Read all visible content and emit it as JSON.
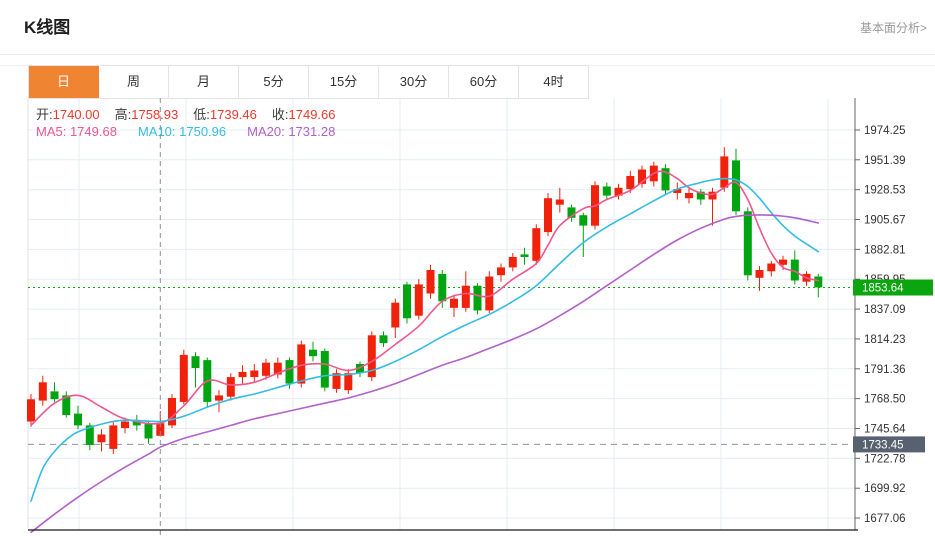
{
  "header": {
    "title": "K线图",
    "link": "基本面分析>"
  },
  "tabs": {
    "active_index": 0,
    "active_bg": "#ef8432",
    "items": [
      {
        "id": "tab-day",
        "label": "日"
      },
      {
        "id": "tab-week",
        "label": "周"
      },
      {
        "id": "tab-month",
        "label": "月"
      },
      {
        "id": "tab-5min",
        "label": "5分"
      },
      {
        "id": "tab-15min",
        "label": "15分"
      },
      {
        "id": "tab-30min",
        "label": "30分"
      },
      {
        "id": "tab-60min",
        "label": "60分"
      },
      {
        "id": "tab-4hour",
        "label": "4时"
      }
    ]
  },
  "readout": {
    "value_color": "#f0382c",
    "ohlc": [
      {
        "id": "open",
        "label": "开:",
        "value": "1740.00"
      },
      {
        "id": "high",
        "label": "高:",
        "value": "1758.93"
      },
      {
        "id": "low",
        "label": "低:",
        "value": "1739.46"
      },
      {
        "id": "close",
        "label": "收:",
        "value": "1749.66"
      }
    ],
    "ma": [
      {
        "id": "ma5",
        "label": "MA5:",
        "value": "1749.68",
        "color": "#ee578c"
      },
      {
        "id": "ma10",
        "label": "MA10:",
        "value": "1750.96",
        "color": "#35bce2"
      },
      {
        "id": "ma20",
        "label": "MA20:",
        "value": "1731.28",
        "color": "#b161c9"
      }
    ]
  },
  "chart_data": {
    "type": "candlestick",
    "title": "K线图 (日线)",
    "grid": true,
    "y_axis_side": "right",
    "ylim": [
      1665,
      1987
    ],
    "y_tick_labels": [
      "1974.25",
      "1951.39",
      "1928.53",
      "1905.67",
      "1882.81",
      "1859.95",
      "1837.09",
      "1814.23",
      "1791.36",
      "1768.50",
      "1745.64",
      "1722.78",
      "1699.92",
      "1677.06"
    ],
    "colors": {
      "up": "#f0220c",
      "down": "#00a411",
      "ma5": "#ee578c",
      "ma10": "#35bce2",
      "ma20": "#b161c9",
      "grid": "#e4edf3"
    },
    "current_price": {
      "value": "1853.64",
      "line_color": "#18a418",
      "box_color": "#0ba50f",
      "text_color": "#ffffff"
    },
    "crosshair": {
      "candle_index": 11,
      "h_line_price": "1733.45",
      "h_box_color": "#576170",
      "h_text_color": "#ffffff",
      "line_color": "#8a93a0"
    },
    "candle_format": "[open, close, high, low]",
    "candles": [
      [
        1751,
        1768,
        1772,
        1747
      ],
      [
        1767,
        1781,
        1786,
        1763
      ],
      [
        1774,
        1768,
        1781,
        1766
      ],
      [
        1771,
        1756,
        1774,
        1754
      ],
      [
        1757,
        1748,
        1763,
        1745
      ],
      [
        1748,
        1733,
        1750,
        1729
      ],
      [
        1735,
        1741,
        1745,
        1728
      ],
      [
        1730,
        1748,
        1751,
        1726
      ],
      [
        1746,
        1751,
        1754,
        1742
      ],
      [
        1752,
        1748,
        1756,
        1744
      ],
      [
        1749,
        1738,
        1752,
        1734
      ],
      [
        1740.0,
        1749.66,
        1758.93,
        1739.46
      ],
      [
        1748,
        1769,
        1772,
        1746
      ],
      [
        1766,
        1802,
        1806,
        1764
      ],
      [
        1801,
        1792,
        1804,
        1777
      ],
      [
        1798,
        1766,
        1800,
        1762
      ],
      [
        1767,
        1771,
        1775,
        1758
      ],
      [
        1770,
        1785,
        1788,
        1767
      ],
      [
        1785,
        1789,
        1794,
        1780
      ],
      [
        1785,
        1790,
        1795,
        1781
      ],
      [
        1786,
        1796,
        1799,
        1783
      ],
      [
        1787,
        1796,
        1800,
        1784
      ],
      [
        1798,
        1780,
        1800,
        1776
      ],
      [
        1780,
        1810,
        1813,
        1777
      ],
      [
        1806,
        1801,
        1812,
        1797
      ],
      [
        1805,
        1777,
        1807,
        1774
      ],
      [
        1776,
        1788,
        1791,
        1773
      ],
      [
        1775,
        1788,
        1791,
        1772
      ],
      [
        1795,
        1788,
        1797,
        1785
      ],
      [
        1785,
        1817,
        1820,
        1782
      ],
      [
        1817,
        1811,
        1820,
        1808
      ],
      [
        1823,
        1842,
        1845,
        1815
      ],
      [
        1856,
        1830,
        1858,
        1826
      ],
      [
        1832,
        1856,
        1860,
        1829
      ],
      [
        1849,
        1867,
        1871,
        1845
      ],
      [
        1864,
        1843,
        1867,
        1838
      ],
      [
        1838,
        1845,
        1848,
        1831
      ],
      [
        1838,
        1855,
        1866,
        1835
      ],
      [
        1855,
        1836,
        1857,
        1833
      ],
      [
        1836,
        1862,
        1866,
        1834
      ],
      [
        1863,
        1869,
        1872,
        1858
      ],
      [
        1869,
        1877,
        1880,
        1866
      ],
      [
        1879,
        1877,
        1884,
        1871
      ],
      [
        1874,
        1899,
        1902,
        1871
      ],
      [
        1896,
        1922,
        1926,
        1893
      ],
      [
        1917,
        1921,
        1930,
        1911
      ],
      [
        1915,
        1907,
        1917,
        1904
      ],
      [
        1909,
        1901,
        1911,
        1877
      ],
      [
        1901,
        1932,
        1935,
        1898
      ],
      [
        1931,
        1924,
        1934,
        1921
      ],
      [
        1924,
        1930,
        1933,
        1921
      ],
      [
        1929,
        1939,
        1943,
        1926
      ],
      [
        1933,
        1944,
        1947,
        1930
      ],
      [
        1935,
        1947,
        1950,
        1931
      ],
      [
        1945,
        1928,
        1948,
        1925
      ],
      [
        1926,
        1929,
        1934,
        1921
      ],
      [
        1922,
        1926,
        1930,
        1918
      ],
      [
        1927,
        1921,
        1929,
        1917
      ],
      [
        1921,
        1927,
        1930,
        1901
      ],
      [
        1930,
        1954,
        1961,
        1927
      ],
      [
        1951,
        1912,
        1960,
        1909
      ],
      [
        1912,
        1863,
        1915,
        1859
      ],
      [
        1861,
        1867,
        1870,
        1851
      ],
      [
        1866,
        1872,
        1874,
        1862
      ],
      [
        1871,
        1875,
        1878,
        1867
      ],
      [
        1875,
        1859,
        1882,
        1856
      ],
      [
        1858,
        1864,
        1866,
        1855
      ],
      [
        1862,
        1853.64,
        1864,
        1846
      ]
    ],
    "ma_lines": {
      "ma5": [
        [
          0,
          1748
        ],
        [
          2,
          1765
        ],
        [
          4,
          1771
        ],
        [
          6,
          1762
        ],
        [
          8,
          1753
        ],
        [
          11,
          1749.7
        ],
        [
          13,
          1763
        ],
        [
          15,
          1782
        ],
        [
          17,
          1779
        ],
        [
          19,
          1781
        ],
        [
          21,
          1788
        ],
        [
          23,
          1794
        ],
        [
          25,
          1795
        ],
        [
          27,
          1790
        ],
        [
          29,
          1797
        ],
        [
          31,
          1810
        ],
        [
          33,
          1824
        ],
        [
          35,
          1843
        ],
        [
          37,
          1849
        ],
        [
          39,
          1847
        ],
        [
          41,
          1860
        ],
        [
          43,
          1872
        ],
        [
          44,
          1886
        ],
        [
          45,
          1901
        ],
        [
          47,
          1914
        ],
        [
          48,
          1916
        ],
        [
          49,
          1921
        ],
        [
          51,
          1928
        ],
        [
          53,
          1941
        ],
        [
          54,
          1942
        ],
        [
          55,
          1937
        ],
        [
          56,
          1930
        ],
        [
          57,
          1926
        ],
        [
          58,
          1925
        ],
        [
          59,
          1930
        ],
        [
          60,
          1934
        ],
        [
          61,
          1921
        ],
        [
          62,
          1899
        ],
        [
          63,
          1880
        ],
        [
          64,
          1869
        ],
        [
          65,
          1866
        ],
        [
          66,
          1861
        ],
        [
          67,
          1859
        ]
      ],
      "ma10": [
        [
          0,
          1690
        ],
        [
          1,
          1715
        ],
        [
          2,
          1728
        ],
        [
          3,
          1737
        ],
        [
          4,
          1743
        ],
        [
          6,
          1749
        ],
        [
          8,
          1752
        ],
        [
          11,
          1751
        ],
        [
          13,
          1755
        ],
        [
          15,
          1762
        ],
        [
          17,
          1768
        ],
        [
          19,
          1772
        ],
        [
          21,
          1777
        ],
        [
          23,
          1782
        ],
        [
          25,
          1786
        ],
        [
          27,
          1787
        ],
        [
          29,
          1790
        ],
        [
          31,
          1797
        ],
        [
          33,
          1806
        ],
        [
          35,
          1816
        ],
        [
          37,
          1825
        ],
        [
          39,
          1833
        ],
        [
          41,
          1843
        ],
        [
          43,
          1855
        ],
        [
          45,
          1872
        ],
        [
          47,
          1888
        ],
        [
          49,
          1900
        ],
        [
          51,
          1910
        ],
        [
          53,
          1920
        ],
        [
          55,
          1929
        ],
        [
          57,
          1934
        ],
        [
          58,
          1936
        ],
        [
          59,
          1937
        ],
        [
          60,
          1936
        ],
        [
          61,
          1931
        ],
        [
          62,
          1922
        ],
        [
          63,
          1911
        ],
        [
          64,
          1901
        ],
        [
          65,
          1893
        ],
        [
          66,
          1887
        ],
        [
          67,
          1881
        ]
      ],
      "ma20": [
        [
          0,
          1666
        ],
        [
          2,
          1680
        ],
        [
          4,
          1693
        ],
        [
          6,
          1705
        ],
        [
          8,
          1716
        ],
        [
          10,
          1726
        ],
        [
          11,
          1731.3
        ],
        [
          13,
          1738
        ],
        [
          15,
          1743
        ],
        [
          17,
          1748
        ],
        [
          19,
          1753
        ],
        [
          21,
          1757
        ],
        [
          23,
          1761
        ],
        [
          25,
          1765
        ],
        [
          27,
          1769
        ],
        [
          29,
          1774
        ],
        [
          31,
          1780
        ],
        [
          33,
          1787
        ],
        [
          35,
          1794
        ],
        [
          37,
          1800
        ],
        [
          39,
          1807
        ],
        [
          41,
          1814
        ],
        [
          43,
          1822
        ],
        [
          45,
          1832
        ],
        [
          47,
          1843
        ],
        [
          49,
          1855
        ],
        [
          51,
          1867
        ],
        [
          53,
          1879
        ],
        [
          55,
          1890
        ],
        [
          57,
          1899
        ],
        [
          59,
          1906
        ],
        [
          60,
          1908
        ],
        [
          61,
          1909
        ],
        [
          63,
          1909
        ],
        [
          65,
          1907
        ],
        [
          67,
          1903
        ]
      ]
    }
  }
}
